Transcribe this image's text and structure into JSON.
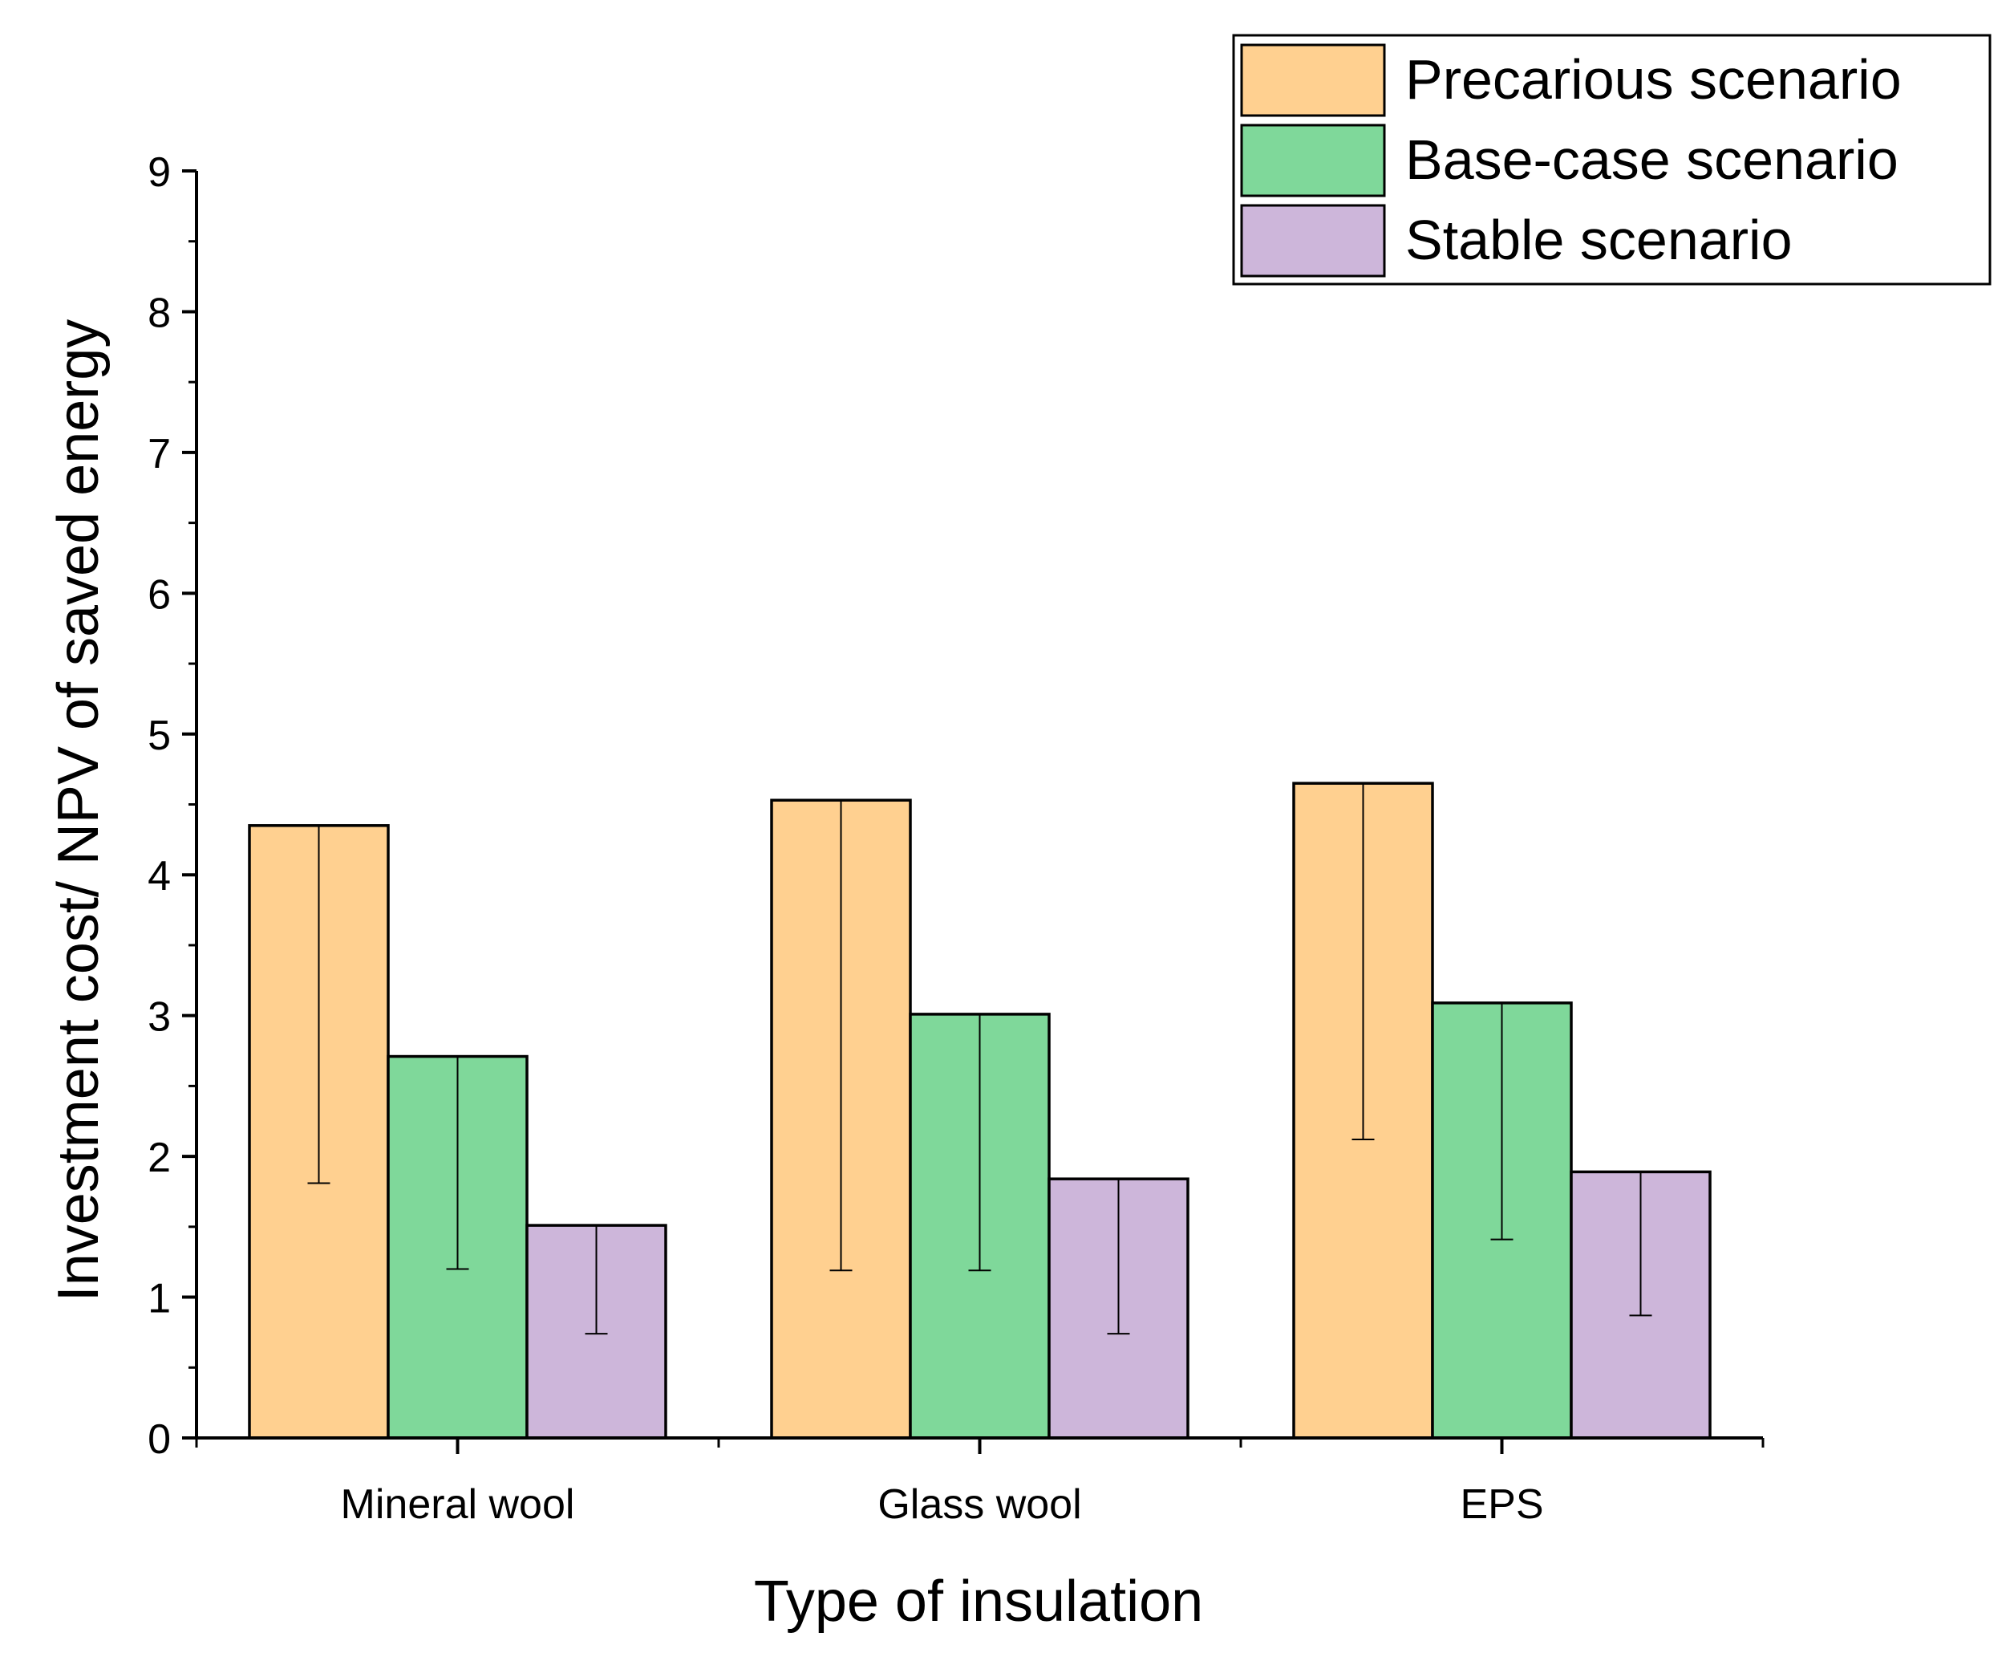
{
  "chart_data": {
    "type": "bar",
    "title": "",
    "xlabel": "Type of insulation",
    "ylabel": "Investment cost/ NPV of saved energy",
    "ylim": [
      0,
      9
    ],
    "y_ticks": [
      "0",
      "1",
      "2",
      "3",
      "4",
      "5",
      "6",
      "7",
      "8",
      "9"
    ],
    "categories": [
      "Mineral wool",
      "Glass wool",
      "EPS"
    ],
    "legend_position": "top-right",
    "series": [
      {
        "name": "Precarious scenario",
        "color": "#FFD090",
        "values": [
          4.35,
          4.53,
          4.65
        ],
        "error_low": [
          1.81,
          1.19,
          2.12
        ]
      },
      {
        "name": "Base-case scenario",
        "color": "#7FD89A",
        "values": [
          2.71,
          3.01,
          3.09
        ],
        "error_low": [
          1.2,
          1.19,
          1.41
        ]
      },
      {
        "name": "Stable scenario",
        "color": "#CDB6DA",
        "values": [
          1.51,
          1.84,
          1.89
        ],
        "error_low": [
          0.74,
          0.74,
          0.87
        ]
      }
    ]
  }
}
